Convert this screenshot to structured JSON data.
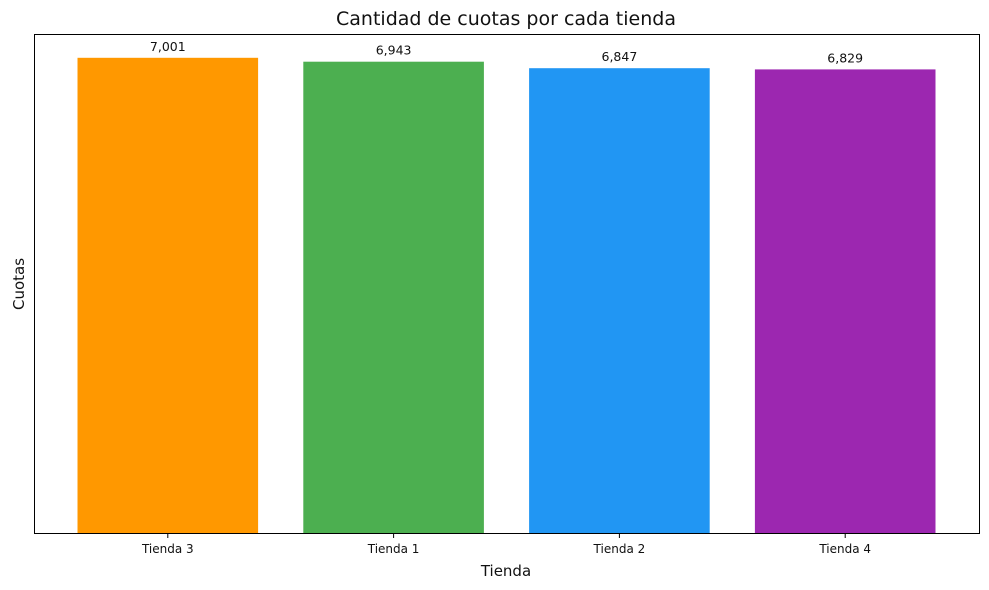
{
  "chart_data": {
    "type": "bar",
    "title": "Cantidad de cuotas por cada tienda",
    "xlabel": "Tienda",
    "ylabel": "Cuotas",
    "categories": [
      "Tienda 3",
      "Tienda 1",
      "Tienda 2",
      "Tienda 4"
    ],
    "values": [
      7001,
      6943,
      6847,
      6829
    ],
    "value_labels": [
      "7,001",
      "6,943",
      "6,847",
      "6,829"
    ],
    "colors": [
      "#ff9800",
      "#4caf50",
      "#2196f3",
      "#9c27b0"
    ],
    "ylim": [
      0,
      7351
    ],
    "y_ticks_visible": false,
    "grid": false,
    "legend": "none"
  }
}
